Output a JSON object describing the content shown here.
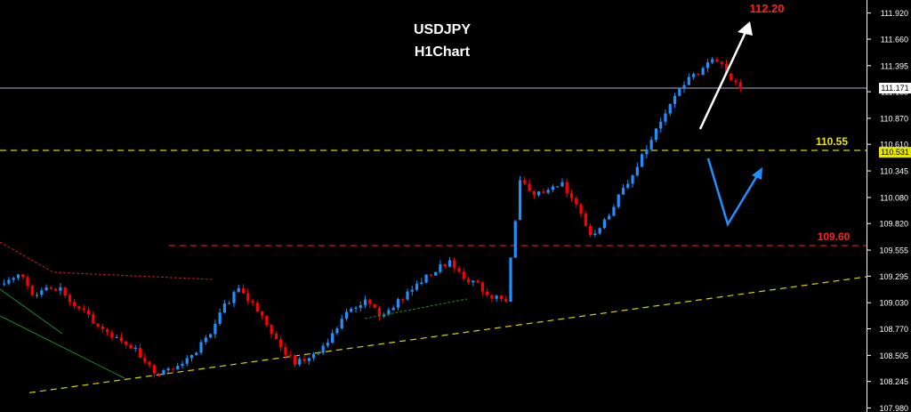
{
  "chart_data": {
    "type": "candlestick",
    "symbol": "USDJPY",
    "title": "USDJPY",
    "subtitle": "H1Chart",
    "ylim": [
      107.94,
      112.05
    ],
    "x_count": 184,
    "y_ticks": [
      "111.920",
      "111.660",
      "111.395",
      "111.135",
      "110.870",
      "110.610",
      "110.345",
      "110.080",
      "109.820",
      "109.555",
      "109.295",
      "109.030",
      "108.770",
      "108.505",
      "108.245",
      "107.980"
    ],
    "current_price_label": "111.171",
    "current_price": 111.171,
    "level_price_label": "110.531",
    "level_price": 110.531,
    "colors": {
      "up": "#1e90ff",
      "down": "#ff0000",
      "axis": "#ffffff",
      "current_line": "#aab0c8"
    },
    "annotations": {
      "target_label": "112.20",
      "resistance_label": "110.55",
      "resistance_value": 110.55,
      "support_label": "109.60",
      "support_value": 109.6,
      "trendline": [
        [
          5,
          108.13
        ],
        [
          184,
          109.29
        ]
      ]
    },
    "path_closes": [
      [
        0,
        109.22
      ],
      [
        3,
        109.33
      ],
      [
        6,
        109.12
      ],
      [
        9,
        109.16
      ],
      [
        12,
        109.18
      ],
      [
        14,
        109.02
      ],
      [
        17,
        108.93
      ],
      [
        20,
        108.8
      ],
      [
        23,
        108.71
      ],
      [
        26,
        108.63
      ],
      [
        29,
        108.51
      ],
      [
        32,
        108.33
      ],
      [
        35,
        108.36
      ],
      [
        38,
        108.4
      ],
      [
        41,
        108.56
      ],
      [
        44,
        108.73
      ],
      [
        47,
        109.0
      ],
      [
        50,
        109.16
      ],
      [
        53,
        109.02
      ],
      [
        56,
        108.82
      ],
      [
        59,
        108.58
      ],
      [
        62,
        108.43
      ],
      [
        65,
        108.47
      ],
      [
        68,
        108.59
      ],
      [
        71,
        108.78
      ],
      [
        74,
        108.99
      ],
      [
        77,
        109.05
      ],
      [
        80,
        108.92
      ],
      [
        83,
        108.99
      ],
      [
        86,
        109.13
      ],
      [
        89,
        109.25
      ],
      [
        92,
        109.36
      ],
      [
        95,
        109.45
      ],
      [
        98,
        109.29
      ],
      [
        101,
        109.21
      ],
      [
        104,
        109.08
      ],
      [
        107,
        109.05
      ],
      [
        110,
        110.26
      ],
      [
        113,
        110.09
      ],
      [
        116,
        110.15
      ],
      [
        119,
        110.22
      ],
      [
        122,
        110.01
      ],
      [
        125,
        109.69
      ],
      [
        128,
        109.83
      ],
      [
        131,
        110.08
      ],
      [
        134,
        110.33
      ],
      [
        137,
        110.57
      ],
      [
        140,
        110.84
      ],
      [
        143,
        111.12
      ],
      [
        146,
        111.26
      ],
      [
        149,
        111.37
      ],
      [
        152,
        111.46
      ],
      [
        155,
        111.27
      ],
      [
        158,
        111.15
      ]
    ],
    "volatility": 0.028,
    "seed": 20240611
  }
}
